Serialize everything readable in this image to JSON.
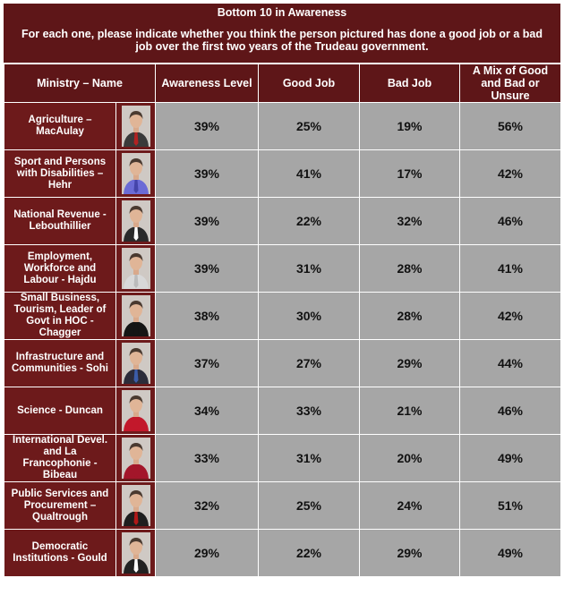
{
  "title": "Bottom 10 in Awareness",
  "question": "For each one, please indicate whether you think the person pictured has done a good job or a bad job over the first two years of the Trudeau government.",
  "headers": [
    "Ministry – Name",
    "Awareness Level",
    "Good Job",
    "Bad Job",
    "A Mix of Good and Bad or Unsure"
  ],
  "rows": [
    {
      "name": "Agriculture – MacAulay",
      "awareness": "39%",
      "good": "25%",
      "bad": "19%",
      "mix": "56%",
      "suit": "#3a3a3a",
      "tie": "#b22222"
    },
    {
      "name": "Sport and Persons with Disabilities – Hehr",
      "awareness": "39%",
      "good": "41%",
      "bad": "17%",
      "mix": "42%",
      "suit": "#6b6bd6",
      "tie": "#4444aa"
    },
    {
      "name": "National Revenue - Lebouthillier",
      "awareness": "39%",
      "good": "22%",
      "bad": "32%",
      "mix": "46%",
      "suit": "#2a2a2a",
      "tie": "#ffffff"
    },
    {
      "name": "Employment, Workforce and Labour - Hajdu",
      "awareness": "39%",
      "good": "31%",
      "bad": "28%",
      "mix": "41%",
      "suit": "#d8d8d8",
      "tie": "#bbbbbb"
    },
    {
      "name": "Small Business, Tourism, Leader of Govt in HOC - Chagger",
      "awareness": "38%",
      "good": "30%",
      "bad": "28%",
      "mix": "42%",
      "suit": "#151515",
      "tie": "#151515"
    },
    {
      "name": "Infrastructure and Communities - Sohi",
      "awareness": "37%",
      "good": "27%",
      "bad": "29%",
      "mix": "44%",
      "suit": "#2c2c3a",
      "tie": "#3b5ca8"
    },
    {
      "name": "Science - Duncan",
      "awareness": "34%",
      "good": "33%",
      "bad": "21%",
      "mix": "46%",
      "suit": "#c2182b",
      "tie": "#c2182b"
    },
    {
      "name": "International Devel. and La Francophonie - Bibeau",
      "awareness": "33%",
      "good": "31%",
      "bad": "20%",
      "mix": "49%",
      "suit": "#a3162a",
      "tie": "#a3162a"
    },
    {
      "name": "Public Services and Procurement – Qualtrough",
      "awareness": "32%",
      "good": "25%",
      "bad": "24%",
      "mix": "51%",
      "suit": "#1e1e1e",
      "tie": "#b01818"
    },
    {
      "name": "Democratic Institutions - Gould",
      "awareness": "29%",
      "good": "22%",
      "bad": "29%",
      "mix": "49%",
      "suit": "#222222",
      "tie": "#ffffff"
    }
  ],
  "chart_data": {
    "type": "table",
    "title": "Bottom 10 in Awareness",
    "columns": [
      "Ministry – Name",
      "Awareness Level",
      "Good Job",
      "Bad Job",
      "A Mix of Good and Bad or Unsure"
    ],
    "rows": [
      [
        "Agriculture – MacAulay",
        39,
        25,
        19,
        56
      ],
      [
        "Sport and Persons with Disabilities – Hehr",
        39,
        41,
        17,
        42
      ],
      [
        "National Revenue - Lebouthillier",
        39,
        22,
        32,
        46
      ],
      [
        "Employment, Workforce and Labour - Hajdu",
        39,
        31,
        28,
        41
      ],
      [
        "Small Business, Tourism, Leader of Govt in HOC - Chagger",
        38,
        30,
        28,
        42
      ],
      [
        "Infrastructure and Communities - Sohi",
        37,
        27,
        29,
        44
      ],
      [
        "Science - Duncan",
        34,
        33,
        21,
        46
      ],
      [
        "International Devel. and La Francophonie - Bibeau",
        33,
        31,
        20,
        49
      ],
      [
        "Public Services and Procurement – Qualtrough",
        32,
        25,
        24,
        51
      ],
      [
        "Democratic Institutions - Gould",
        29,
        22,
        29,
        49
      ]
    ]
  }
}
